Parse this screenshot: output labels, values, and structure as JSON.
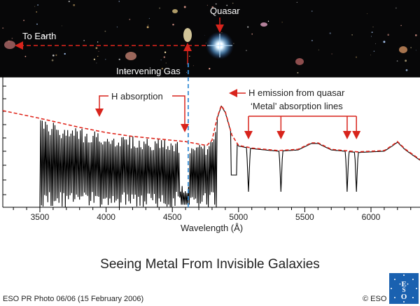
{
  "photo": {
    "labels": {
      "quasar": "Quasar",
      "to_earth": "To Earth",
      "intervening_gas": "Intervening Gas"
    }
  },
  "chart_data": {
    "type": "line",
    "xlabel": "Wavelength (Å)",
    "xlim": [
      3220,
      6370
    ],
    "ylim": [
      0,
      1
    ],
    "x_ticks": [
      3500,
      4000,
      4500,
      5000,
      5500,
      6000
    ],
    "gas_line_x": 4620,
    "continuum_dashed": {
      "x": [
        3220,
        3500,
        3800,
        4000,
        4200,
        4400,
        4600,
        4700,
        4760,
        4800,
        4840,
        4870,
        4900,
        4950,
        5000,
        5100,
        5300,
        5450,
        5550,
        5600,
        5700,
        5900,
        6100,
        6160,
        6200,
        6260,
        6370
      ],
      "y": [
        0.75,
        0.69,
        0.62,
        0.58,
        0.55,
        0.53,
        0.51,
        0.49,
        0.48,
        0.52,
        0.7,
        0.79,
        0.74,
        0.56,
        0.48,
        0.46,
        0.44,
        0.45,
        0.5,
        0.5,
        0.45,
        0.43,
        0.44,
        0.48,
        0.51,
        0.45,
        0.37
      ]
    },
    "annotations": {
      "h_absorption": "H absorption",
      "h_emission": "H emission from quasar",
      "metal_lines": "‘Metal’ absorption lines"
    },
    "metal_line_x": [
      5075,
      5320,
      5820,
      5890
    ]
  },
  "caption": "Seeing Metal From Invisible Galaxies",
  "credit": "ESO PR Photo 06/06 (15 February 2006)",
  "copyright": "© ESO",
  "colors": {
    "dashed": "#e0261c",
    "gas_line": "#3a8fd6",
    "arrow": "#d8241c",
    "logo": "#1a61b0"
  }
}
